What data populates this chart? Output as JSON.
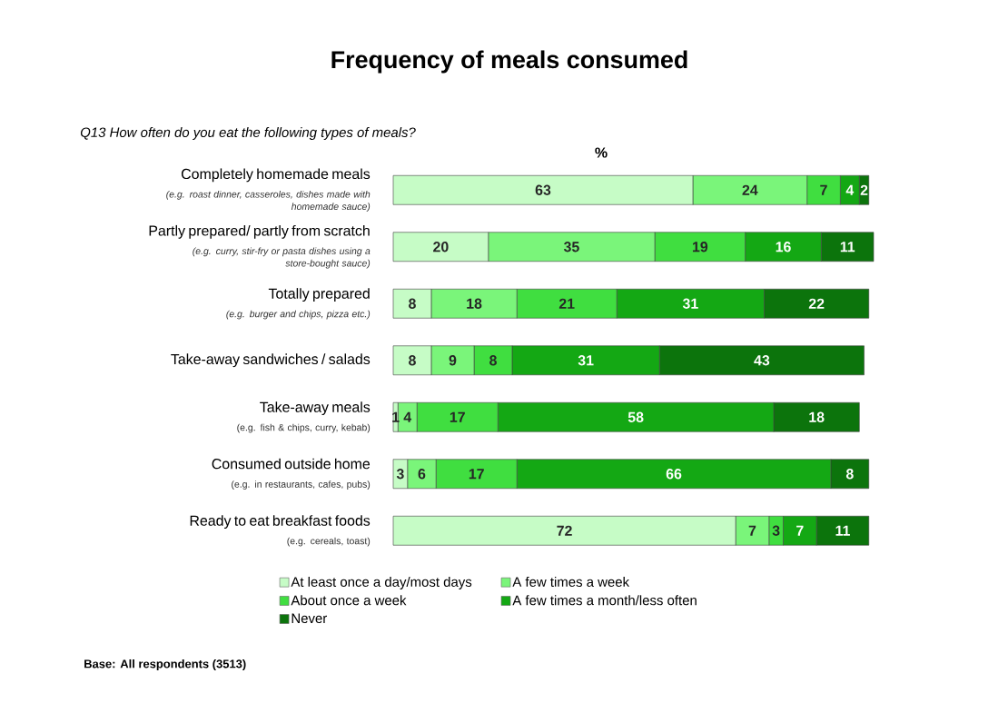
{
  "chart_data": {
    "type": "bar",
    "orientation": "horizontal",
    "stacked": true,
    "data_labels": true,
    "legend": "bottom",
    "title": "Frequency of meals consumed",
    "subtitle": "Q13 How often do you eat the following types of meals?",
    "xlabel": "%",
    "categories": [
      "Completely homemade meals",
      "Partly prepared/ partly from scratch",
      "Totally prepared",
      "Take-away sandwiches / salads",
      "Take-away meals",
      "Consumed outside home",
      "Ready to eat breakfast foods"
    ],
    "series": [
      {
        "name": "At least once a day/most days",
        "color": "#c6fcc6",
        "values": [
          63,
          20,
          8,
          8,
          1,
          3,
          72
        ]
      },
      {
        "name": "A few times a week",
        "color": "#7af57a",
        "values": [
          24,
          35,
          18,
          9,
          4,
          6,
          7
        ]
      },
      {
        "name": "About once a week",
        "color": "#40de40",
        "values": [
          7,
          19,
          21,
          8,
          17,
          17,
          3
        ]
      },
      {
        "name": "A few times a month/less often",
        "color": "#14a814",
        "values": [
          4,
          16,
          31,
          31,
          58,
          66,
          7
        ]
      },
      {
        "name": "Never",
        "color": "#0c740c",
        "values": [
          2,
          11,
          22,
          43,
          18,
          8,
          11
        ]
      }
    ],
    "annotations": [
      "*(e.g. roast dinner, casseroles, dishes made with homemade sauce)*",
      "*(e.g. curry, stir-fry or pasta dishes using a store-bought sauce)*",
      "*(e.g. burger and chips, pizza etc.)*",
      "(e.g. fish & chips, curry, kebab)",
      "(e.g. in restaurants, cafes, pubs)",
      "(e.g. cereals, toast)",
      "**Base: All respondents (3513)**"
    ]
  }
}
